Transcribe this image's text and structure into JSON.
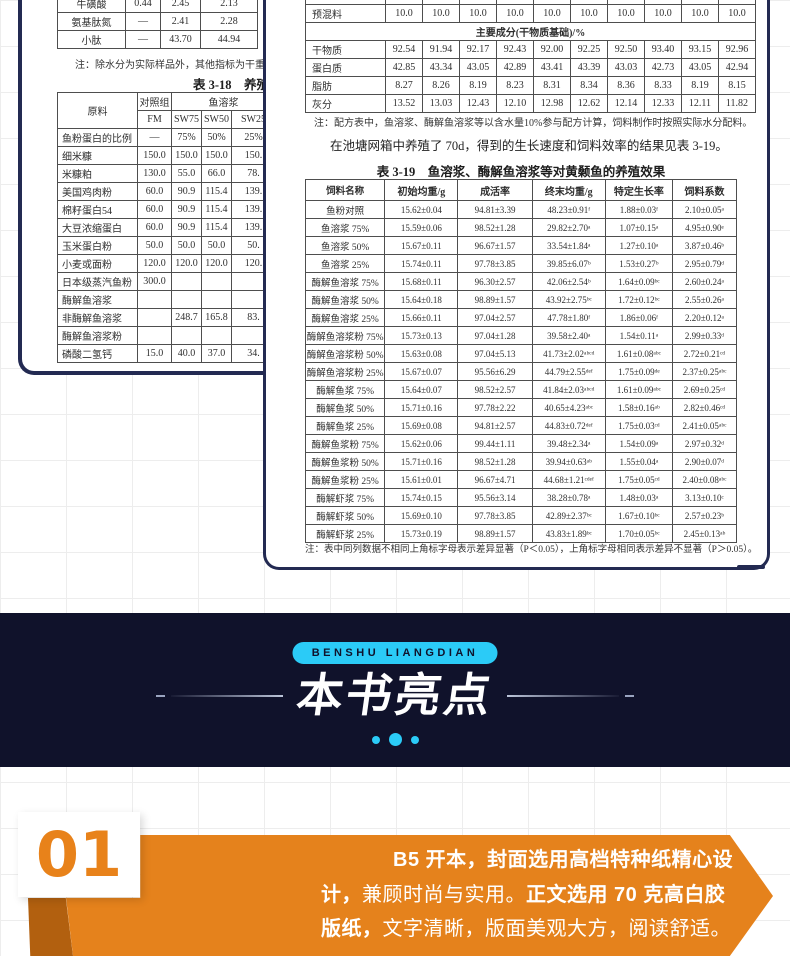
{
  "page1": {
    "peptide_table": {
      "rows": [
        [
          "牛磺酸",
          "0.44",
          "2.45",
          "2.13"
        ],
        [
          "氨基肽氮",
          "—",
          "2.41",
          "2.28"
        ],
        [
          "小肽",
          "—",
          "43.70",
          "44.94"
        ]
      ]
    },
    "note": "注：除水分为实际样品外，其他指标为干重的",
    "table318_title": "表 3-18　养殖",
    "table318": {
      "col_ingredient": "原料",
      "group_control": "对照组",
      "group_fishsoluble": "鱼溶浆",
      "subheaders": [
        "FM",
        "SW75",
        "SW50",
        "SW25"
      ],
      "rows": [
        [
          "鱼粉蛋白的比例",
          "—",
          "75%",
          "50%",
          "25%"
        ],
        [
          "细米糠",
          "150.0",
          "150.0",
          "150.0",
          "150."
        ],
        [
          "米糠粕",
          "130.0",
          "55.0",
          "66.0",
          "78."
        ],
        [
          "美国鸡肉粉",
          "60.0",
          "90.9",
          "115.4",
          "139."
        ],
        [
          "棉籽蛋白54",
          "60.0",
          "90.9",
          "115.4",
          "139."
        ],
        [
          "大豆浓缩蛋白",
          "60.0",
          "90.9",
          "115.4",
          "139."
        ],
        [
          "玉米蛋白粉",
          "50.0",
          "50.0",
          "50.0",
          "50."
        ],
        [
          "小麦或面粉",
          "120.0",
          "120.0",
          "120.0",
          "120."
        ],
        [
          "日本级蒸汽鱼粉",
          "300.0",
          "",
          "",
          ""
        ],
        [
          "酶解鱼溶浆",
          "",
          "",
          "",
          ""
        ],
        [
          "非酶解鱼溶浆",
          "",
          "248.7",
          "165.8",
          "83."
        ],
        [
          "酶解鱼溶浆粉",
          "",
          "",
          "",
          ""
        ],
        [
          "磷酸二氢钙",
          "15.0",
          "40.0",
          "37.0",
          "34."
        ]
      ]
    }
  },
  "page2": {
    "premix_rows": [
      [
        "预混料",
        "10.0",
        "10.0",
        "10.0",
        "10.0",
        "10.0",
        "10.0",
        "10.0",
        "10.0",
        "10.0",
        "10.0"
      ]
    ],
    "span_row": "主要成分(干物质基础)/%",
    "comp_rows": [
      [
        "干物质",
        "92.54",
        "91.94",
        "92.17",
        "92.43",
        "92.00",
        "92.25",
        "92.50",
        "93.40",
        "93.15",
        "92.96"
      ],
      [
        "蛋白质",
        "42.85",
        "43.34",
        "43.05",
        "42.89",
        "43.41",
        "43.39",
        "43.03",
        "42.73",
        "43.05",
        "42.94"
      ],
      [
        "脂肪",
        "8.27",
        "8.26",
        "8.19",
        "8.23",
        "8.31",
        "8.34",
        "8.36",
        "8.33",
        "8.19",
        "8.15"
      ],
      [
        "灰分",
        "13.52",
        "13.03",
        "12.43",
        "12.10",
        "12.98",
        "12.62",
        "12.14",
        "12.33",
        "12.11",
        "11.82"
      ]
    ],
    "note": "注：配方表中，鱼溶浆、酶解鱼溶浆等以含水量10%参与配方计算，饲料制作时按照实际水分配料。",
    "paragraph": "在池塘网箱中养殖了 70d，得到的生长速度和饲料效率的结果见表 3-19。",
    "table319_title": "表 3-19　鱼溶浆、酶解鱼溶浆等对黄颡鱼的养殖效果",
    "table319": {
      "headers": [
        "饲料名称",
        "初始均重/g",
        "成活率",
        "终末均重/g",
        "特定生长率",
        "饲料系数"
      ],
      "rows": [
        [
          "鱼粉对照",
          "15.62±0.04",
          "94.81±3.39",
          "48.23±0.91ᶠ",
          "1.88±0.03ᶠ",
          "2.10±0.05ᵃ"
        ],
        [
          "鱼溶浆 75%",
          "15.59±0.06",
          "98.52±1.28",
          "29.82±2.70ᵃ",
          "1.07±0.15ᵃ",
          "4.95±0.90ᵉ"
        ],
        [
          "鱼溶浆 50%",
          "15.67±0.11",
          "96.67±1.57",
          "33.54±1.84ᵃ",
          "1.27±0.10ᵃ",
          "3.87±0.46ᵇ"
        ],
        [
          "鱼溶浆 25%",
          "15.74±0.11",
          "97.78±3.85",
          "39.85±6.07ᵇ",
          "1.53±0.27ᵇ",
          "2.95±0.79ᵈ"
        ],
        [
          "酶解鱼溶浆 75%",
          "15.68±0.11",
          "96.30±2.57",
          "42.06±2.54ᵇ",
          "1.64±0.09ᵇᶜ",
          "2.60±0.24ᵃ"
        ],
        [
          "酶解鱼溶浆 50%",
          "15.64±0.18",
          "98.89±1.57",
          "43.92±2.75ᵇᶜ",
          "1.72±0.12ᵇᶜ",
          "2.55±0.26ᵃ"
        ],
        [
          "酶解鱼溶浆 25%",
          "15.66±0.11",
          "97.04±2.57",
          "47.78±1.80ᶠ",
          "1.86±0.06ᶠ",
          "2.20±0.12ᵃ"
        ],
        [
          "酶解鱼溶浆粉 75%",
          "15.73±0.13",
          "97.04±1.28",
          "39.58±2.40ᵃ",
          "1.54±0.11ᵃ",
          "2.99±0.33ᵈ"
        ],
        [
          "酶解鱼溶浆粉 50%",
          "15.63±0.08",
          "97.04±5.13",
          "41.73±2.02ᵃᵇᶜᵈ",
          "1.61±0.08ᵃᵇᶜ",
          "2.72±0.21ᶜᵈ"
        ],
        [
          "酶解鱼溶浆粉 25%",
          "15.67±0.07",
          "95.56±6.29",
          "44.79±2.55ᵈᵉᶠ",
          "1.75±0.09ᵈᵉ",
          "2.37±0.25ᵃᵇᶜ"
        ],
        [
          "酶解鱼浆 75%",
          "15.64±0.07",
          "98.52±2.57",
          "41.84±2.03ᵃᵇᶜᵈ",
          "1.61±0.09ᵃᵇᶜ",
          "2.69±0.25ᶜᵈ"
        ],
        [
          "酶解鱼浆 50%",
          "15.71±0.16",
          "97.78±2.22",
          "40.65±4.23ᵃᵇᶜ",
          "1.58±0.16ᵃᵇ",
          "2.82±0.46ᶜᵈ"
        ],
        [
          "酶解鱼浆 25%",
          "15.69±0.08",
          "94.81±2.57",
          "44.83±0.72ᵈᵉᶠ",
          "1.75±0.03ᶜᵈ",
          "2.41±0.05ᵃᵇᶜ"
        ],
        [
          "酶解鱼浆粉 75%",
          "15.62±0.06",
          "99.44±1.11",
          "39.48±2.34ᵃ",
          "1.54±0.09ᵃ",
          "2.97±0.32ᵈ"
        ],
        [
          "酶解鱼浆粉 50%",
          "15.71±0.16",
          "98.52±1.28",
          "39.94±0.63ᵃᵇ",
          "1.55±0.04ᵃ",
          "2.90±0.07ᵈ"
        ],
        [
          "酶解鱼浆粉 25%",
          "15.61±0.01",
          "96.67±4.71",
          "44.68±1.21ᶜᵈᵉᶠ",
          "1.75±0.05ᶜᵈ",
          "2.40±0.08ᵃᵇᶜ"
        ],
        [
          "酶解虾浆 75%",
          "15.74±0.15",
          "95.56±3.14",
          "38.28±0.78ᵃ",
          "1.48±0.03ᵃ",
          "3.13±0.10ᶜ"
        ],
        [
          "酶解虾浆 50%",
          "15.69±0.10",
          "97.78±3.85",
          "42.89±2.37ᵇᶜ",
          "1.67±0.10ᵇᶜ",
          "2.57±0.23ᵇ"
        ],
        [
          "酶解虾浆 25%",
          "15.73±0.19",
          "98.89±1.57",
          "43.83±1.89ᵇᶜ",
          "1.70±0.05ᵇᶜ",
          "2.45±0.13ᵃᵇ"
        ]
      ]
    },
    "table319_note": "注：表中同列数据不相同上角标字母表示差异显著（P＜0.05），上角标字母相同表示差异不显著（P＞0.05）。"
  },
  "band": {
    "pill_text": "BENSHU LIANGDIAN",
    "title": "本书亮点"
  },
  "feature": {
    "number": "01",
    "segments": [
      {
        "text": "B5 开本，封面选用高档特种纸精心设计，",
        "bold": true
      },
      {
        "text": "兼顾时尚与实用。",
        "bold": false
      },
      {
        "text": "正文选用 70 克高白胶版纸，",
        "bold": true
      },
      {
        "text": "文字清晰，版面美观大方，阅读舒适。",
        "bold": false
      }
    ]
  },
  "colors": {
    "band_navy": "#10122b",
    "page_border_navy": "#232a52",
    "accent_cyan": "#2bcbf7",
    "ribbon_orange": "#e5821c",
    "ribbon_fold_orange": "#b2600f",
    "number_orange": "#e8821a"
  }
}
